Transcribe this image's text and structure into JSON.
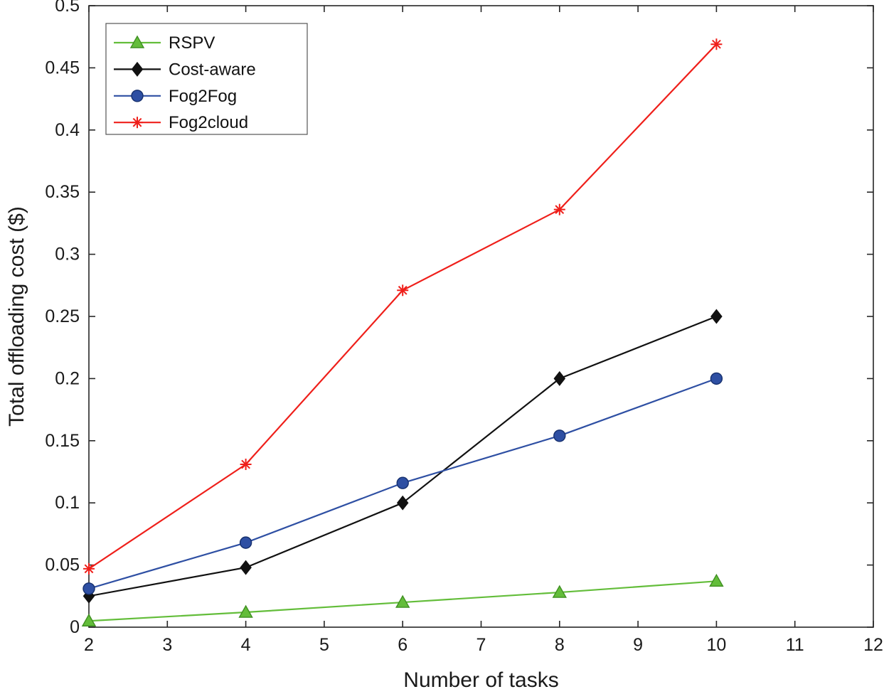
{
  "chart_data": {
    "type": "line",
    "title": "",
    "xlabel": "Number of tasks",
    "ylabel": "Total offloading cost ($)",
    "xlim": [
      2,
      12
    ],
    "ylim": [
      0,
      0.5
    ],
    "xticks": [
      2,
      3,
      4,
      5,
      6,
      7,
      8,
      9,
      10,
      11,
      12
    ],
    "xtick_labels": [
      "2",
      "3",
      "4",
      "5",
      "6",
      "7",
      "8",
      "9",
      "10",
      "11",
      "12"
    ],
    "yticks": [
      0,
      0.05,
      0.1,
      0.15,
      0.2,
      0.25,
      0.3,
      0.35,
      0.4,
      0.45,
      0.5
    ],
    "ytick_labels": [
      "0",
      "0.05",
      "0.1",
      "0.15",
      "0.2",
      "0.25",
      "0.3",
      "0.35",
      "0.4",
      "0.45",
      "0.5"
    ],
    "grid": false,
    "legend_position": "top-left",
    "x": [
      2,
      4,
      6,
      8,
      10
    ],
    "series": [
      {
        "name": "RSPV",
        "marker": "triangle",
        "color": "#63bd3a",
        "marker_edge": "#3f8f21",
        "values": [
          0.005,
          0.012,
          0.02,
          0.028,
          0.037
        ]
      },
      {
        "name": "Cost-aware",
        "marker": "diamond",
        "color": "#111111",
        "marker_edge": "#111111",
        "values": [
          0.025,
          0.048,
          0.1,
          0.2,
          0.25
        ]
      },
      {
        "name": "Fog2Fog",
        "marker": "circle",
        "color": "#2e4fa3",
        "marker_edge": "#16306e",
        "values": [
          0.031,
          0.068,
          0.116,
          0.154,
          0.2
        ]
      },
      {
        "name": "Fog2cloud",
        "marker": "asterisk",
        "color": "#ef1f1a",
        "marker_edge": "#ef1f1a",
        "values": [
          0.047,
          0.131,
          0.271,
          0.336,
          0.469
        ]
      }
    ],
    "axis_color": "#262626",
    "tick_label_color": "#1a1a1a"
  }
}
